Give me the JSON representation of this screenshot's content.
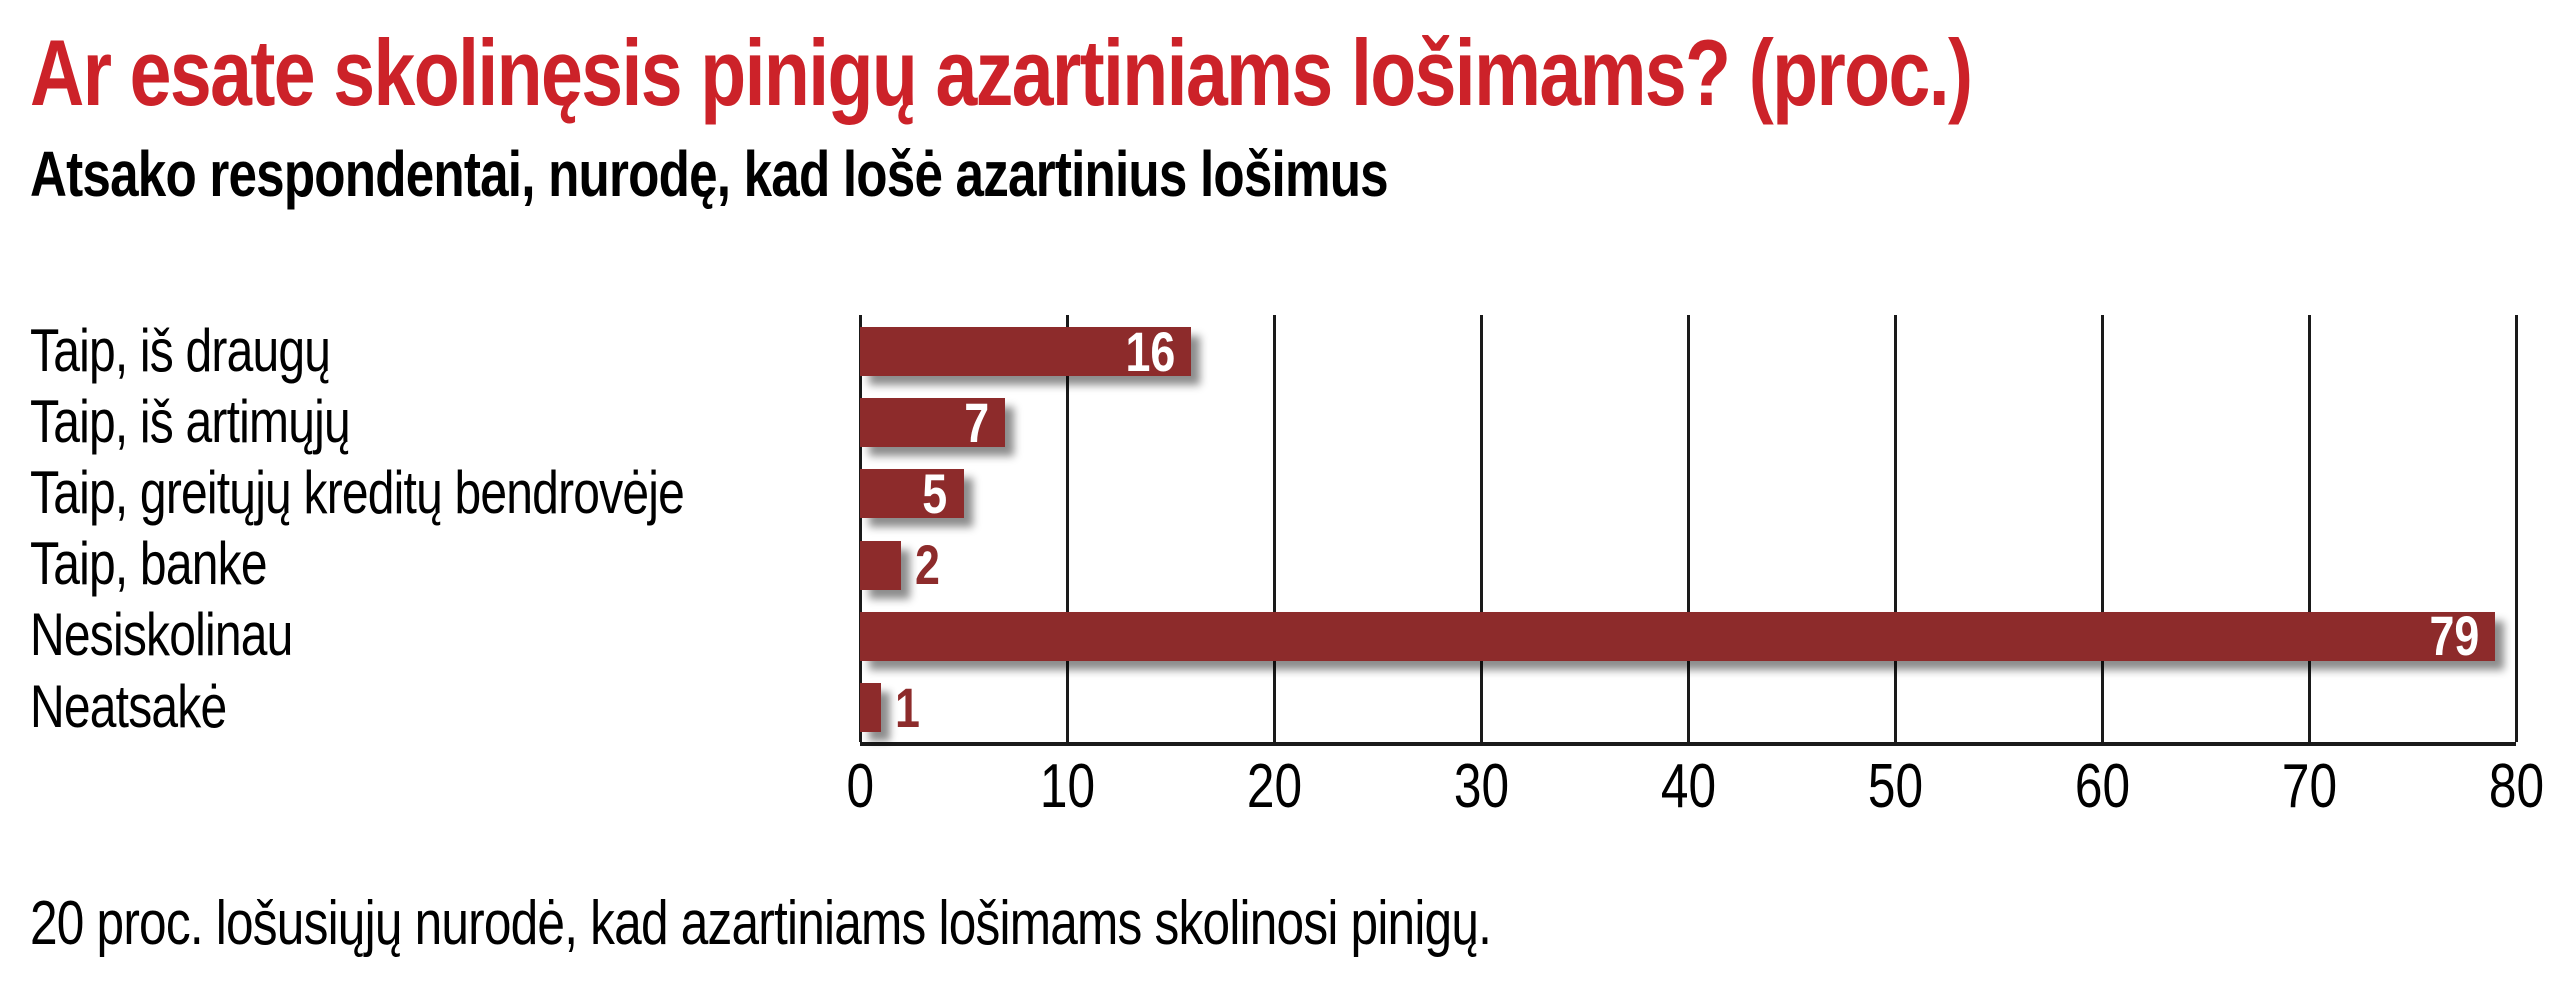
{
  "header": {
    "title": "Ar esate skolinęsis pinigų azartiniams lošimams? (proc.)",
    "subtitle": "Atsako respondentai, nurodę, kad lošė azartinius lošimus"
  },
  "footnote": "20 proc. lošusiųjų nurodė, kad azartiniams lošimams skolinosi pinigų.",
  "colors": {
    "title": "#cc2229",
    "text": "#000000",
    "axis": "#1a1a1a",
    "bar": "#8d2b2b",
    "value_inside": "#ffffff",
    "value_outside": "#8d2b2b"
  },
  "chart_data": {
    "type": "bar",
    "orientation": "horizontal",
    "title": "Ar esate skolinęsis pinigų azartiniams lošimams? (proc.)",
    "subtitle": "Atsako respondentai, nurodę, kad lošė azartinius lošimus",
    "categories": [
      "Taip, iš draugų",
      "Taip, iš artimųjų",
      "Taip, greitųjų kreditų bendrovėje",
      "Taip, banke",
      "Nesiskolinau",
      "Neatsakė"
    ],
    "values": [
      16,
      7,
      5,
      2,
      79,
      1
    ],
    "xlabel": "",
    "ylabel": "",
    "xlim": [
      0,
      80
    ],
    "x_ticks": [
      0,
      10,
      20,
      30,
      40,
      50,
      60,
      70,
      80
    ],
    "grid": true,
    "legend": false,
    "value_labels": true
  }
}
